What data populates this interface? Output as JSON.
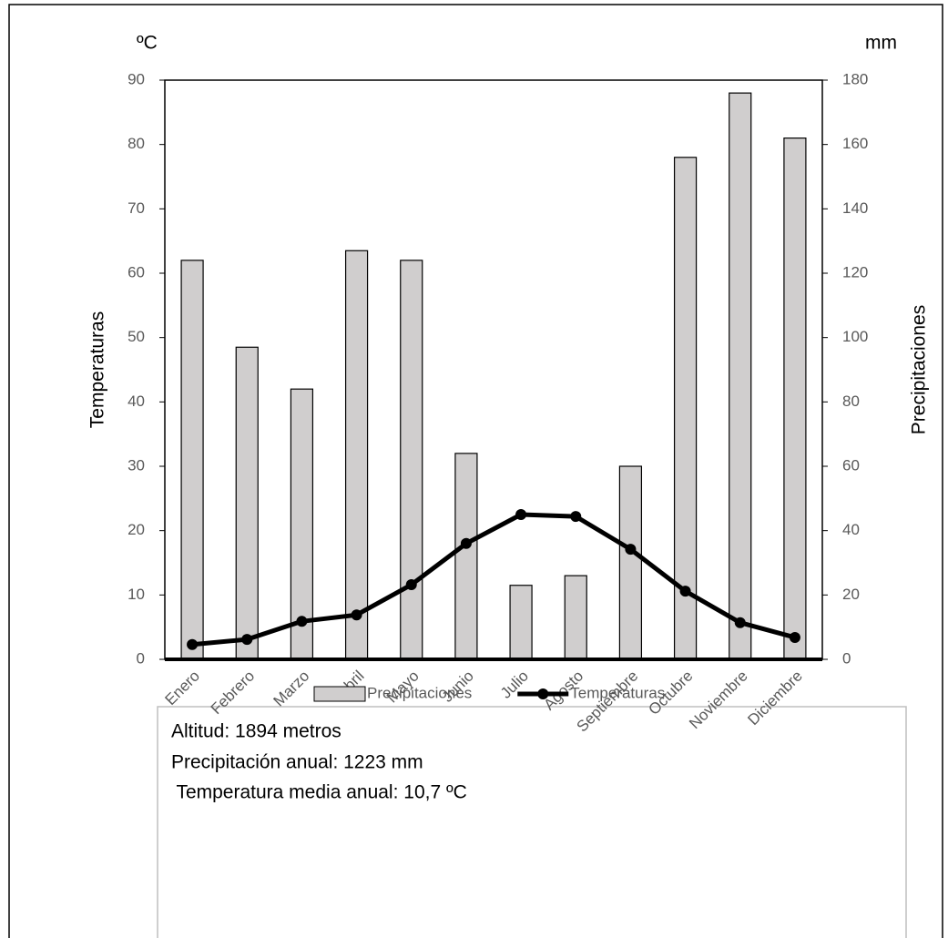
{
  "chart_data": {
    "type": "bar",
    "y_unit": "ºC",
    "y2_unit": "mm",
    "ylabel": "Temperaturas",
    "y2label": "Precipitaciones",
    "categories": [
      "Enero",
      "Febrero",
      "Marzo",
      "Abril",
      "Mayo",
      "Junio",
      "Julio",
      "Agosto",
      "Septiembre",
      "Octubre",
      "Noviembre",
      "Diciembre"
    ],
    "series": [
      {
        "name": "Precipitaciones",
        "type": "bar",
        "axis": "y2",
        "color": "#d0cece",
        "values": [
          124,
          97,
          84,
          127,
          124,
          64,
          23,
          26,
          60,
          156,
          176,
          162
        ]
      },
      {
        "name": "Temperaturas",
        "type": "line",
        "axis": "y",
        "color": "#000000",
        "values": [
          2.3,
          3.1,
          5.9,
          6.9,
          11.6,
          18.0,
          22.5,
          22.2,
          17.1,
          10.6,
          5.7,
          3.4
        ]
      }
    ],
    "ylim": [
      0,
      90
    ],
    "yticks": [
      0,
      10,
      20,
      30,
      40,
      50,
      60,
      70,
      80,
      90
    ],
    "y2lim": [
      0,
      180
    ],
    "y2ticks": [
      0,
      20,
      40,
      60,
      80,
      100,
      120,
      140,
      160,
      180
    ],
    "grid": false,
    "legend": "bottom",
    "annotations": [
      "Altitud: 1894 metros",
      "Precipitación anual: 1223 mm",
      " Temperatura media anual: 10,7 ºC"
    ]
  }
}
